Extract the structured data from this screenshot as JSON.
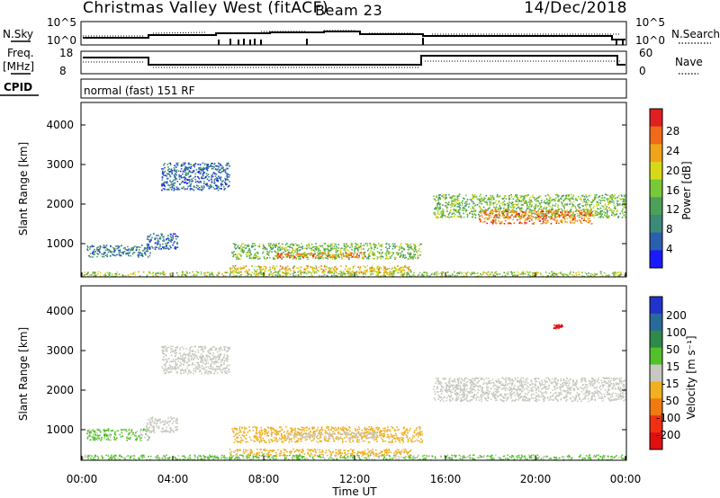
{
  "header": {
    "station": "Christmas Valley West (fitACF)",
    "beam": "Beam 23",
    "date": "14/Dec/2018"
  },
  "status_panel": {
    "nsky_label": "N.Sky",
    "nsearch_label": "N.Search",
    "noise_ticks_left": [
      "10^5",
      "10^0"
    ],
    "noise_ticks_right": [
      "10^5",
      "10^0"
    ],
    "freq_label": "Freq.",
    "freq_unit": "[MHz]",
    "freq_ticks": [
      "18",
      "8"
    ],
    "nave_label": "Nave",
    "nave_ticks": [
      "60",
      "0"
    ],
    "cpid_label": "CPID",
    "cpid_text": "normal (fast) 151 RF"
  },
  "power_panel": {
    "ylabel": "Slant Range [km]",
    "yticks": [
      "1000",
      "2000",
      "3000",
      "4000"
    ],
    "colorbar_label": "Power [dB]",
    "colorbar_ticks": [
      "4",
      "8",
      "12",
      "16",
      "20",
      "24",
      "28"
    ],
    "colorbar_colors": [
      "#1a1aff",
      "#2a5fb0",
      "#3c8a7a",
      "#4da05a",
      "#7ac83a",
      "#d8d81a",
      "#f0a41a",
      "#f06a1a",
      "#e02020"
    ]
  },
  "velocity_panel": {
    "ylabel": "Slant Range [km]",
    "yticks": [
      "1000",
      "2000",
      "3000",
      "4000"
    ],
    "colorbar_label": "Velocity [m s⁻¹]",
    "colorbar_ticks": [
      "200",
      "100",
      "50",
      "15",
      "-15",
      "-50",
      "-100",
      "-200"
    ],
    "colorbar_colors": [
      "#2233cc",
      "#2a6a9a",
      "#2f8a4a",
      "#52c02a",
      "#c8c8c0",
      "#f0b020",
      "#f07a10",
      "#f03010",
      "#e01010"
    ]
  },
  "xaxis": {
    "label": "Time UT",
    "ticks": [
      "00:00",
      "04:00",
      "08:00",
      "12:00",
      "16:00",
      "20:00",
      "00:00"
    ]
  },
  "chart_data": [
    {
      "type": "heatmap",
      "title": "Power [dB]",
      "xlabel": "Time UT",
      "ylabel": "Slant Range [km]",
      "xlim": [
        0,
        24
      ],
      "ylim": [
        180,
        4600
      ],
      "clim": [
        0,
        30
      ],
      "regions": [
        {
          "t0": 0.2,
          "t1": 3.0,
          "r0": 700,
          "r1": 1000,
          "value": 8
        },
        {
          "t0": 2.8,
          "t1": 4.2,
          "r0": 900,
          "r1": 1300,
          "value": 6
        },
        {
          "t0": 6.6,
          "t1": 15.0,
          "r0": 650,
          "r1": 1050,
          "value": 14
        },
        {
          "t0": 8.5,
          "t1": 12.5,
          "r0": 680,
          "r1": 820,
          "value": 24
        },
        {
          "t0": 6.5,
          "t1": 14.5,
          "r0": 300,
          "r1": 480,
          "value": 20
        },
        {
          "t0": 0.0,
          "t1": 24.0,
          "r0": 200,
          "r1": 330,
          "value": 16
        },
        {
          "t0": 3.5,
          "t1": 6.5,
          "r0": 2400,
          "r1": 3100,
          "value": 6
        },
        {
          "t0": 15.5,
          "t1": 24.0,
          "r0": 1700,
          "r1": 2300,
          "value": 14
        },
        {
          "t0": 17.5,
          "t1": 22.5,
          "r0": 1550,
          "r1": 1900,
          "value": 24
        }
      ]
    },
    {
      "type": "heatmap",
      "title": "Velocity [m s⁻¹]",
      "xlabel": "Time UT",
      "ylabel": "Slant Range [km]",
      "xlim": [
        0,
        24
      ],
      "ylim": [
        180,
        4600
      ],
      "clim": [
        -200,
        200
      ],
      "regions": [
        {
          "t0": 0.2,
          "t1": 3.0,
          "r0": 700,
          "r1": 1000,
          "value": 30
        },
        {
          "t0": 2.8,
          "t1": 4.2,
          "r0": 900,
          "r1": 1300,
          "value": 0
        },
        {
          "t0": 6.6,
          "t1": 15.0,
          "r0": 650,
          "r1": 1050,
          "value": -40
        },
        {
          "t0": 9.0,
          "t1": 13.0,
          "r0": 750,
          "r1": 900,
          "value": 0
        },
        {
          "t0": 6.5,
          "t1": 14.5,
          "r0": 300,
          "r1": 480,
          "value": -40
        },
        {
          "t0": 0.0,
          "t1": 24.0,
          "r0": 200,
          "r1": 330,
          "value": 30
        },
        {
          "t0": 3.5,
          "t1": 6.5,
          "r0": 2400,
          "r1": 3100,
          "value": 0
        },
        {
          "t0": 15.5,
          "t1": 24.0,
          "r0": 1700,
          "r1": 2300,
          "value": 0
        },
        {
          "t0": 20.8,
          "t1": 21.2,
          "r0": 3550,
          "r1": 3650,
          "value": -180
        }
      ]
    }
  ]
}
